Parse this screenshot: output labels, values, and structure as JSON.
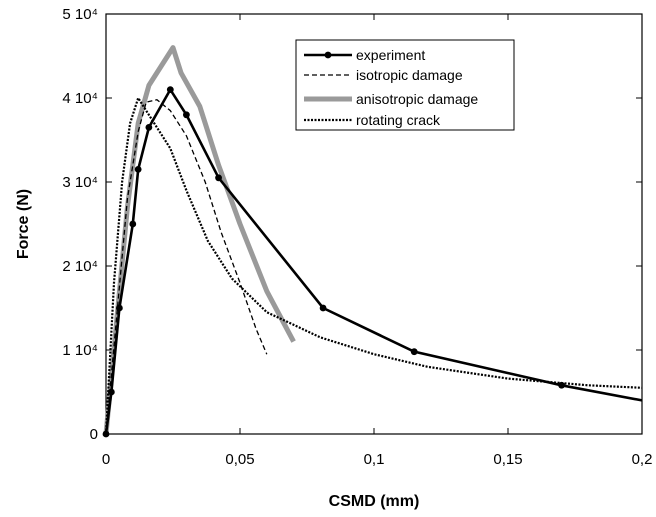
{
  "chart_data": {
    "type": "line",
    "xlabel": "CSMD (mm)",
    "ylabel": "Force (N)",
    "xlim": [
      0,
      0.2
    ],
    "ylim": [
      0,
      50000
    ],
    "x_ticks": [
      {
        "value": 0,
        "label": "0"
      },
      {
        "value": 0.05,
        "label": "0,05"
      },
      {
        "value": 0.1,
        "label": "0,1"
      },
      {
        "value": 0.15,
        "label": "0,15"
      },
      {
        "value": 0.2,
        "label": "0,2"
      }
    ],
    "y_ticks": [
      {
        "value": 0,
        "label": "0"
      },
      {
        "value": 10000,
        "label": "1 10⁴"
      },
      {
        "value": 20000,
        "label": "2 10⁴"
      },
      {
        "value": 30000,
        "label": "3 10⁴"
      },
      {
        "value": 40000,
        "label": "4 10⁴"
      },
      {
        "value": 50000,
        "label": "5 10⁴"
      }
    ],
    "grid": false,
    "legend_position": "top-right",
    "series": [
      {
        "name": "experiment",
        "style": "solid-marker",
        "color": "#000000",
        "x": [
          0,
          0.002,
          0.005,
          0.01,
          0.012,
          0.016,
          0.024,
          0.03,
          0.042,
          0.081,
          0.115,
          0.17,
          0.2
        ],
        "y": [
          0,
          5000,
          15000,
          25000,
          31500,
          36500,
          41000,
          38000,
          30500,
          15000,
          9800,
          5800,
          4000
        ]
      },
      {
        "name": "isotropic damage",
        "style": "dashed",
        "color": "#000000",
        "x": [
          0,
          0.004,
          0.008,
          0.012,
          0.015,
          0.019,
          0.024,
          0.03,
          0.037,
          0.043,
          0.05,
          0.056,
          0.06
        ],
        "y": [
          0,
          14000,
          28000,
          36000,
          39500,
          39800,
          38500,
          35500,
          30000,
          24000,
          18000,
          12500,
          9500
        ]
      },
      {
        "name": "anisotropic damage",
        "style": "thick-gray",
        "color": "#9a9a9a",
        "x": [
          0,
          0.004,
          0.008,
          0.012,
          0.016,
          0.021,
          0.025,
          0.028,
          0.035,
          0.042,
          0.05,
          0.06,
          0.07
        ],
        "y": [
          0,
          13500,
          27000,
          37000,
          41500,
          44000,
          46000,
          43000,
          39000,
          32000,
          25000,
          17000,
          11000
        ]
      },
      {
        "name": "rotating crack",
        "style": "dotted",
        "color": "#000000",
        "x": [
          0,
          0.003,
          0.006,
          0.009,
          0.012,
          0.014,
          0.018,
          0.024,
          0.03,
          0.038,
          0.047,
          0.06,
          0.08,
          0.1,
          0.12,
          0.15,
          0.18,
          0.2
        ],
        "y": [
          0,
          18000,
          30000,
          37000,
          40000,
          39000,
          37000,
          34000,
          29000,
          23000,
          18500,
          14500,
          11500,
          9500,
          8000,
          6600,
          5800,
          5500
        ]
      }
    ]
  }
}
